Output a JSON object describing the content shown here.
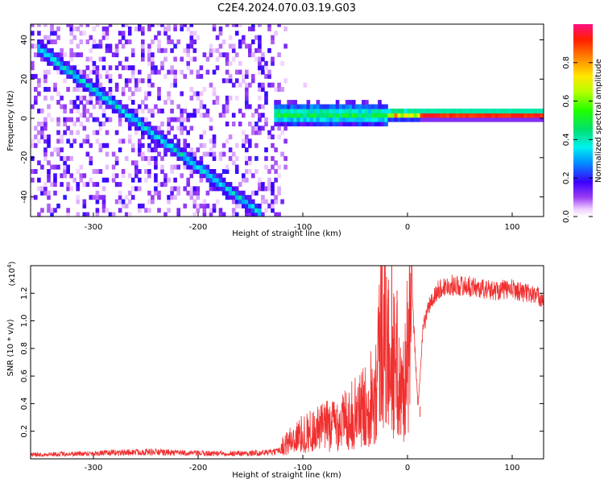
{
  "figure": {
    "title": "C2E4.2024.070.03.19.G03"
  },
  "chart_data": [
    {
      "type": "heatmap",
      "xlabel": "Height of straight line (km)",
      "ylabel": "Frequency (Hz)",
      "xlim": [
        -360,
        130
      ],
      "ylim": [
        -50,
        48
      ],
      "x_ticks": [
        -300,
        -200,
        -100,
        0,
        100
      ],
      "x_tick_labels": [
        "-300",
        "-200",
        "-100",
        "0",
        "100"
      ],
      "y_ticks": [
        -40,
        -20,
        0,
        20,
        40
      ],
      "y_tick_labels": [
        "-40",
        "-20",
        "0",
        "20",
        "40"
      ],
      "grid": false,
      "colorbar": {
        "label": "Normalized spectral amplitude",
        "range": [
          0,
          1
        ],
        "ticks": [
          0.0,
          0.2,
          0.4,
          0.6,
          0.8
        ],
        "tick_labels": [
          "0.0",
          "0.2",
          "0.4",
          "0.6",
          "0.8"
        ],
        "colormap": "rainbow"
      },
      "features": [
        {
          "name": "diagonal-track",
          "x": [
            -355,
            -140
          ],
          "y": [
            35,
            -50
          ],
          "amplitude": 0.3
        },
        {
          "name": "steep-track",
          "x": [
            -145,
            -135
          ],
          "y": [
            48,
            0
          ],
          "amplitude": 0.15
        },
        {
          "name": "horizontal-band",
          "x": [
            -130,
            130
          ],
          "y": [
            1,
            1
          ],
          "amplitude": 1.0
        }
      ]
    },
    {
      "type": "line",
      "xlabel": "Height of straight line (km)",
      "ylabel": "SNR (10 * v/v)",
      "y_multiplier_label": "(x10",
      "y_multiplier_exp": "4",
      "y_multiplier_close": ")",
      "xlim": [
        -360,
        130
      ],
      "ylim": [
        0,
        14000
      ],
      "x_ticks": [
        -300,
        -200,
        -100,
        0,
        100
      ],
      "x_tick_labels": [
        "-300",
        "-200",
        "-100",
        "0",
        "100"
      ],
      "y_ticks": [
        2000,
        4000,
        6000,
        8000,
        10000,
        12000
      ],
      "y_tick_labels": [
        "0.2",
        "0.4",
        "0.6",
        "0.8",
        "1.0",
        "1.2"
      ],
      "grid": false,
      "series": [
        {
          "color": "#f03030",
          "x": [
            -360,
            -300,
            -250,
            -200,
            -150,
            -125,
            -115,
            -100,
            -80,
            -60,
            -40,
            -30,
            -25,
            -20,
            -15,
            -10,
            -5,
            0,
            5,
            10,
            15,
            20,
            30,
            40,
            60,
            80,
            100,
            120,
            130
          ],
          "y": [
            300,
            400,
            500,
            400,
            400,
            500,
            1200,
            1800,
            2300,
            2800,
            3800,
            5500,
            9500,
            8000,
            7000,
            6500,
            4500,
            7500,
            11000,
            3800,
            9500,
            11000,
            12300,
            12600,
            12500,
            12200,
            12300,
            11900,
            11600
          ]
        }
      ],
      "spikes": [
        {
          "x": -24,
          "y": 14000
        },
        {
          "x": -20,
          "y": 13200
        },
        {
          "x": -15,
          "y": 14000
        },
        {
          "x": -10,
          "y": 12200
        },
        {
          "x": 12,
          "y": 3800
        }
      ]
    }
  ]
}
